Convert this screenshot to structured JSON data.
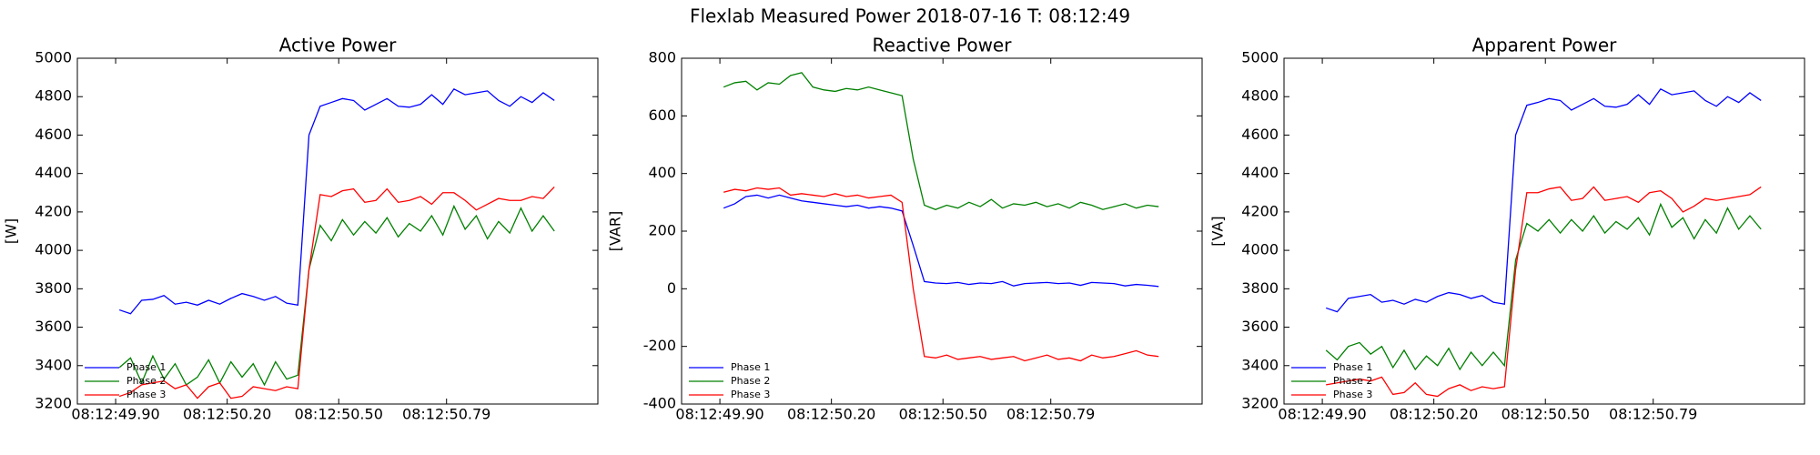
{
  "title": "Flexlab Measured Power 2018-07-16 T: 08:12:49",
  "chart_data": [
    {
      "type": "line",
      "title": "Active Power",
      "ylabel": "[W]",
      "x": [
        0.91,
        0.94,
        0.97,
        1.0,
        1.03,
        1.06,
        1.09,
        1.12,
        1.15,
        1.18,
        1.21,
        1.24,
        1.27,
        1.3,
        1.33,
        1.36,
        1.39,
        1.42,
        1.45,
        1.48,
        1.51,
        1.54,
        1.57,
        1.6,
        1.63,
        1.66,
        1.69,
        1.72,
        1.75,
        1.78,
        1.81,
        1.84,
        1.87,
        1.9,
        1.93,
        1.96,
        1.99,
        2.02,
        2.05,
        2.08
      ],
      "xlim": [
        0.797,
        2.197
      ],
      "xticks": [
        {
          "value": 0.9,
          "label": "08:12:49.90"
        },
        {
          "value": 1.2,
          "label": "08:12:50.20"
        },
        {
          "value": 1.5,
          "label": "08:12:50.50"
        },
        {
          "value": 1.79,
          "label": "08:12:50.79"
        }
      ],
      "ylim": [
        3200,
        5000
      ],
      "yticks": [
        3200,
        3400,
        3600,
        3800,
        4000,
        4200,
        4400,
        4600,
        4800,
        5000
      ],
      "legend": "lower left",
      "series": [
        {
          "name": "Phase 1",
          "color": "#0000ff",
          "values": [
            3690,
            3670,
            3740,
            3745,
            3765,
            3720,
            3730,
            3715,
            3740,
            3720,
            3750,
            3775,
            3760,
            3740,
            3760,
            3725,
            3715,
            4600,
            4750,
            4770,
            4790,
            4780,
            4730,
            4760,
            4790,
            4750,
            4745,
            4760,
            4810,
            4760,
            4840,
            4810,
            4820,
            4830,
            4780,
            4750,
            4800,
            4770,
            4820,
            4780
          ]
        },
        {
          "name": "Phase 2",
          "color": "#008000",
          "values": [
            3390,
            3440,
            3310,
            3450,
            3330,
            3410,
            3300,
            3340,
            3430,
            3310,
            3420,
            3340,
            3410,
            3300,
            3420,
            3330,
            3350,
            3900,
            4130,
            4050,
            4160,
            4080,
            4150,
            4090,
            4170,
            4070,
            4140,
            4100,
            4180,
            4080,
            4230,
            4110,
            4180,
            4060,
            4150,
            4090,
            4220,
            4100,
            4180,
            4100
          ]
        },
        {
          "name": "Phase 3",
          "color": "#ff0000",
          "values": [
            3240,
            3260,
            3300,
            3310,
            3320,
            3280,
            3300,
            3230,
            3290,
            3310,
            3230,
            3240,
            3290,
            3280,
            3270,
            3290,
            3280,
            3900,
            4290,
            4280,
            4310,
            4320,
            4250,
            4260,
            4320,
            4250,
            4260,
            4280,
            4240,
            4300,
            4300,
            4260,
            4210,
            4240,
            4270,
            4260,
            4260,
            4280,
            4270,
            4330
          ]
        }
      ]
    },
    {
      "type": "line",
      "title": "Reactive Power",
      "ylabel": "[VAR]",
      "x": [
        0.91,
        0.94,
        0.97,
        1.0,
        1.03,
        1.06,
        1.09,
        1.12,
        1.15,
        1.18,
        1.21,
        1.24,
        1.27,
        1.3,
        1.33,
        1.36,
        1.39,
        1.42,
        1.45,
        1.48,
        1.51,
        1.54,
        1.57,
        1.6,
        1.63,
        1.66,
        1.69,
        1.72,
        1.75,
        1.78,
        1.81,
        1.84,
        1.87,
        1.9,
        1.93,
        1.96,
        1.99,
        2.02,
        2.05,
        2.08
      ],
      "xlim": [
        0.797,
        2.197
      ],
      "xticks": [
        {
          "value": 0.9,
          "label": "08:12:49.90"
        },
        {
          "value": 1.2,
          "label": "08:12:50.20"
        },
        {
          "value": 1.5,
          "label": "08:12:50.50"
        },
        {
          "value": 1.79,
          "label": "08:12:50.79"
        }
      ],
      "ylim": [
        -400,
        800
      ],
      "yticks": [
        -400,
        -200,
        0,
        200,
        400,
        600,
        800
      ],
      "legend": "lower left",
      "series": [
        {
          "name": "Phase 1",
          "color": "#0000ff",
          "values": [
            280,
            295,
            320,
            325,
            315,
            325,
            315,
            305,
            300,
            295,
            290,
            285,
            290,
            280,
            285,
            280,
            270,
            150,
            25,
            20,
            18,
            22,
            15,
            20,
            18,
            25,
            10,
            18,
            20,
            22,
            18,
            20,
            12,
            22,
            20,
            18,
            10,
            15,
            12,
            8
          ]
        },
        {
          "name": "Phase 2",
          "color": "#008000",
          "values": [
            700,
            715,
            720,
            690,
            715,
            710,
            740,
            750,
            700,
            690,
            685,
            695,
            690,
            700,
            690,
            680,
            670,
            450,
            290,
            275,
            290,
            280,
            300,
            285,
            310,
            280,
            295,
            290,
            300,
            285,
            295,
            280,
            300,
            290,
            275,
            285,
            295,
            280,
            290,
            285
          ]
        },
        {
          "name": "Phase 3",
          "color": "#ff0000",
          "values": [
            335,
            345,
            340,
            350,
            345,
            350,
            325,
            330,
            325,
            320,
            330,
            320,
            325,
            315,
            320,
            325,
            300,
            0,
            -235,
            -240,
            -230,
            -245,
            -240,
            -235,
            -245,
            -240,
            -235,
            -250,
            -240,
            -230,
            -245,
            -240,
            -250,
            -230,
            -240,
            -235,
            -225,
            -215,
            -230,
            -235
          ]
        }
      ]
    },
    {
      "type": "line",
      "title": "Apparent Power",
      "ylabel": "[VA]",
      "x": [
        0.91,
        0.94,
        0.97,
        1.0,
        1.03,
        1.06,
        1.09,
        1.12,
        1.15,
        1.18,
        1.21,
        1.24,
        1.27,
        1.3,
        1.33,
        1.36,
        1.39,
        1.42,
        1.45,
        1.48,
        1.51,
        1.54,
        1.57,
        1.6,
        1.63,
        1.66,
        1.69,
        1.72,
        1.75,
        1.78,
        1.81,
        1.84,
        1.87,
        1.9,
        1.93,
        1.96,
        1.99,
        2.02,
        2.05,
        2.08
      ],
      "xlim": [
        0.797,
        2.197
      ],
      "xticks": [
        {
          "value": 0.9,
          "label": "08:12:49.90"
        },
        {
          "value": 1.2,
          "label": "08:12:50.20"
        },
        {
          "value": 1.5,
          "label": "08:12:50.50"
        },
        {
          "value": 1.79,
          "label": "08:12:50.79"
        }
      ],
      "ylim": [
        3200,
        5000
      ],
      "yticks": [
        3200,
        3400,
        3600,
        3800,
        4000,
        4200,
        4400,
        4600,
        4800,
        5000
      ],
      "legend": "lower left",
      "series": [
        {
          "name": "Phase 1",
          "color": "#0000ff",
          "values": [
            3700,
            3680,
            3750,
            3760,
            3770,
            3730,
            3740,
            3720,
            3745,
            3730,
            3760,
            3780,
            3770,
            3750,
            3765,
            3730,
            3720,
            4600,
            4755,
            4770,
            4790,
            4780,
            4730,
            4760,
            4790,
            4750,
            4745,
            4760,
            4810,
            4760,
            4840,
            4810,
            4820,
            4830,
            4780,
            4750,
            4800,
            4770,
            4820,
            4780
          ]
        },
        {
          "name": "Phase 2",
          "color": "#008000",
          "values": [
            3480,
            3430,
            3500,
            3520,
            3460,
            3500,
            3390,
            3480,
            3380,
            3450,
            3400,
            3490,
            3380,
            3470,
            3400,
            3470,
            3400,
            3950,
            4140,
            4100,
            4160,
            4090,
            4160,
            4100,
            4180,
            4090,
            4150,
            4110,
            4170,
            4080,
            4240,
            4120,
            4170,
            4060,
            4160,
            4090,
            4220,
            4110,
            4180,
            4110
          ]
        },
        {
          "name": "Phase 3",
          "color": "#ff0000",
          "values": [
            3300,
            3310,
            3320,
            3330,
            3320,
            3340,
            3250,
            3260,
            3310,
            3250,
            3240,
            3280,
            3300,
            3270,
            3290,
            3280,
            3290,
            3900,
            4300,
            4300,
            4320,
            4330,
            4260,
            4270,
            4330,
            4260,
            4270,
            4280,
            4250,
            4300,
            4310,
            4270,
            4200,
            4230,
            4270,
            4260,
            4270,
            4280,
            4290,
            4330
          ]
        }
      ]
    }
  ]
}
